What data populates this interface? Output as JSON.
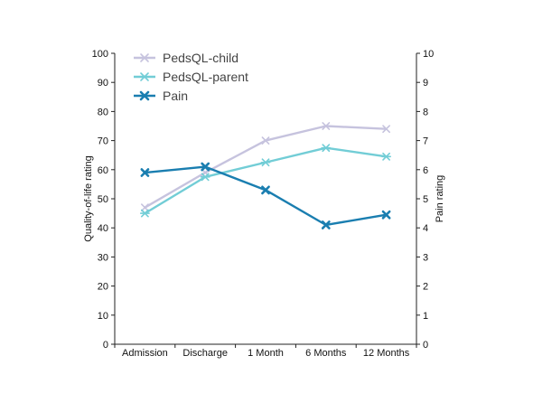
{
  "chart_data": {
    "type": "line",
    "categories": [
      "Admission",
      "Discharge",
      "1 Month",
      "6 Months",
      "12 Months"
    ],
    "series": [
      {
        "name": "PedsQL-child",
        "axis": "left",
        "color": "#c6c3de",
        "marker": "x",
        "values": [
          47,
          59,
          70,
          75,
          74
        ]
      },
      {
        "name": "PedsQL-parent",
        "axis": "left",
        "color": "#72cdd6",
        "marker": "asterisk",
        "values": [
          45,
          57.5,
          62.5,
          67.5,
          64.5
        ]
      },
      {
        "name": "Pain",
        "axis": "right",
        "color": "#1a7eb0",
        "marker": "x-bold",
        "values": [
          5.9,
          6.1,
          5.3,
          4.1,
          4.45
        ]
      }
    ],
    "ylabel": "Quality-of-life rating",
    "y2label": "Pain rating",
    "ylim": [
      0,
      100
    ],
    "y2lim": [
      0,
      10
    ],
    "yticks": [
      "0",
      "10",
      "20",
      "30",
      "40",
      "50",
      "60",
      "70",
      "80",
      "90",
      "100"
    ],
    "y2ticks": [
      "0",
      "1",
      "2",
      "3",
      "4",
      "5",
      "6",
      "7",
      "8",
      "9",
      "10"
    ],
    "grid": false,
    "legend_position": "top-left"
  }
}
